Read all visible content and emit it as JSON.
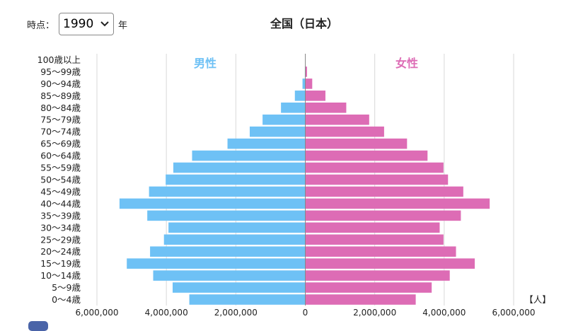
{
  "controls": {
    "time_label": "時点：",
    "selected_year": "1990",
    "year_suffix": "年"
  },
  "colors": {
    "male": "#6ec1f5",
    "female": "#dd6cb5",
    "grid": "#d9d9d9",
    "axis": "#888888"
  },
  "chart_data": {
    "type": "bar",
    "orientation": "horizontal-population-pyramid",
    "title": "全国（日本）",
    "unit": "【人】",
    "categories": [
      "100歳以上",
      "95〜99歳",
      "90〜94歳",
      "85〜89歳",
      "80〜84歳",
      "75〜79歳",
      "70〜74歳",
      "65〜69歳",
      "60〜64歳",
      "55〜59歳",
      "50〜54歳",
      "45〜49歳",
      "40〜44歳",
      "35〜39歳",
      "30〜34歳",
      "25〜29歳",
      "20〜24歳",
      "15〜19歳",
      "10〜14歳",
      "5〜9歳",
      "0〜4歳"
    ],
    "series": [
      {
        "name": "男性",
        "color": "#6ec1f5",
        "values": [
          700,
          12000,
          80000,
          300000,
          700000,
          1230000,
          1600000,
          2240000,
          3260000,
          3800000,
          4020000,
          4500000,
          5350000,
          4550000,
          3940000,
          4070000,
          4470000,
          5140000,
          4380000,
          3820000,
          3340000
        ]
      },
      {
        "name": "女性",
        "color": "#dd6cb5",
        "values": [
          3300,
          50000,
          200000,
          580000,
          1180000,
          1840000,
          2270000,
          2930000,
          3520000,
          3980000,
          4110000,
          4550000,
          5310000,
          4480000,
          3870000,
          3980000,
          4340000,
          4880000,
          4160000,
          3640000,
          3180000
        ]
      }
    ],
    "xlim": [
      -6000000,
      6000000
    ],
    "xticks": [
      -6000000,
      -4000000,
      -2000000,
      0,
      2000000,
      4000000,
      6000000
    ],
    "xtick_labels": [
      "6,000,000",
      "4,000,000",
      "2,000,000",
      "0",
      "2,000,000",
      "4,000,000",
      "6,000,000"
    ],
    "grid": true
  }
}
